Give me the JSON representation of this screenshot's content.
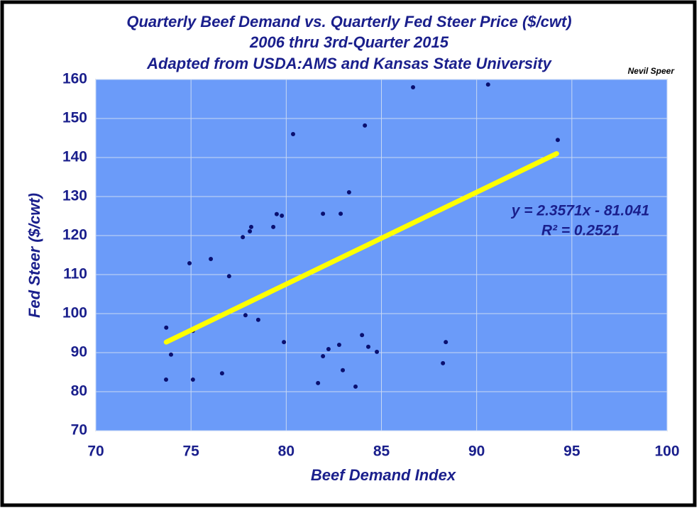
{
  "chart_data": {
    "type": "scatter",
    "title": [
      "Quarterly Beef Demand vs. Quarterly Fed Steer Price ($/cwt)",
      "2006 thru 3rd-Quarter 2015",
      "Adapted from USDA:AMS and Kansas State University"
    ],
    "author": "Nevil Speer",
    "x_label": "Beef Demand Index",
    "y_label": "Fed Steer ($/cwt)",
    "x": [
      73.69,
      73.7,
      73.95,
      74.92,
      75.1,
      75.1,
      76.04,
      76.63,
      77.0,
      77.72,
      77.86,
      78.09,
      78.16,
      78.53,
      79.32,
      79.5,
      79.77,
      79.88,
      80.36,
      81.67,
      81.93,
      81.93,
      82.22,
      82.78,
      82.86,
      82.97,
      83.3,
      83.64,
      83.98,
      84.13,
      84.31,
      84.76,
      86.66,
      88.23,
      88.38,
      90.6,
      94.26
    ],
    "values": [
      83.1,
      96.4,
      89.5,
      112.9,
      95.6,
      83.1,
      114.0,
      84.7,
      109.6,
      119.6,
      99.6,
      121.1,
      122.2,
      98.4,
      122.2,
      125.5,
      125.1,
      92.7,
      146.0,
      82.2,
      125.6,
      89.1,
      90.9,
      92.0,
      125.6,
      85.5,
      131.1,
      81.3,
      94.5,
      148.2,
      91.5,
      90.2,
      158.0,
      87.3,
      92.7,
      158.7,
      144.5
    ],
    "color": "#0a1070",
    "trendline": {
      "x": [
        73.7,
        94.2
      ],
      "y": [
        92.7,
        141.0
      ],
      "color": "#ffff00"
    },
    "equation": "y = 2.3571x - 81.041",
    "r_squared": "R² = 0.2521",
    "xlim": [
      70,
      100
    ],
    "xticks": [
      70,
      75,
      80,
      85,
      90,
      95,
      100
    ],
    "ylim": [
      70,
      160
    ],
    "yticks": [
      70,
      80,
      90,
      100,
      110,
      120,
      130,
      140,
      150,
      160
    ],
    "grid": true,
    "plot_background": "#6b9bf9"
  }
}
